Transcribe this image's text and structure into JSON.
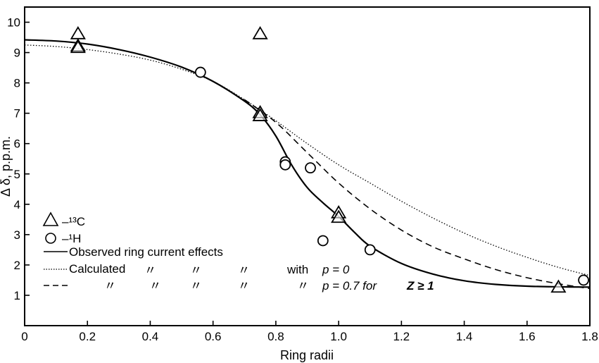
{
  "chart_data": {
    "type": "scatter",
    "xlabel": "Ring radii",
    "ylabel": "Δ δ, p.p.m.",
    "xlim": [
      0,
      1.8
    ],
    "ylim": [
      0,
      10.5
    ],
    "x_ticks": [
      "0",
      "0.2",
      "0.4",
      "0.6",
      "0.8",
      "1.0",
      "1.2",
      "1.4",
      "1.6",
      "1.8"
    ],
    "y_ticks": [
      "1",
      "2",
      "3",
      "4",
      "5",
      "6",
      "7",
      "8",
      "9",
      "10"
    ],
    "grid": false,
    "legend_position": "bottom-left",
    "series": [
      {
        "name": "–13C",
        "kind": "points",
        "marker": "triangle",
        "points": [
          [
            0.17,
            9.6
          ],
          [
            0.17,
            9.2
          ],
          [
            0.17,
            9.15
          ],
          [
            0.75,
            9.6
          ],
          [
            0.75,
            7.0
          ],
          [
            0.75,
            6.9
          ],
          [
            1.0,
            3.7
          ],
          [
            1.0,
            3.55
          ],
          [
            1.7,
            1.25
          ]
        ]
      },
      {
        "name": "–1H",
        "kind": "points",
        "marker": "circle",
        "points": [
          [
            0.56,
            8.35
          ],
          [
            0.83,
            5.4
          ],
          [
            0.83,
            5.3
          ],
          [
            0.91,
            5.2
          ],
          [
            0.95,
            2.8
          ],
          [
            1.1,
            2.5
          ],
          [
            1.78,
            1.5
          ]
        ]
      },
      {
        "name": "Observed ring current effects",
        "kind": "line",
        "style": "solid",
        "points": [
          [
            0,
            9.42
          ],
          [
            0.1,
            9.38
          ],
          [
            0.2,
            9.28
          ],
          [
            0.3,
            9.1
          ],
          [
            0.4,
            8.85
          ],
          [
            0.5,
            8.52
          ],
          [
            0.6,
            8.05
          ],
          [
            0.7,
            7.4
          ],
          [
            0.75,
            6.95
          ],
          [
            0.8,
            6.25
          ],
          [
            0.85,
            5.3
          ],
          [
            0.9,
            4.55
          ],
          [
            0.95,
            4.05
          ],
          [
            1.0,
            3.6
          ],
          [
            1.05,
            3.08
          ],
          [
            1.1,
            2.62
          ],
          [
            1.2,
            2.05
          ],
          [
            1.3,
            1.7
          ],
          [
            1.4,
            1.48
          ],
          [
            1.5,
            1.36
          ],
          [
            1.6,
            1.3
          ],
          [
            1.7,
            1.28
          ],
          [
            1.8,
            1.27
          ]
        ]
      },
      {
        "name": "Calculated with p = 0",
        "kind": "line",
        "style": "dotted",
        "points": [
          [
            0,
            9.25
          ],
          [
            0.1,
            9.2
          ],
          [
            0.2,
            9.1
          ],
          [
            0.3,
            8.95
          ],
          [
            0.4,
            8.75
          ],
          [
            0.5,
            8.45
          ],
          [
            0.6,
            8.05
          ],
          [
            0.7,
            7.45
          ],
          [
            0.8,
            6.75
          ],
          [
            0.9,
            6.0
          ],
          [
            1.0,
            5.3
          ],
          [
            1.1,
            4.7
          ],
          [
            1.2,
            4.1
          ],
          [
            1.3,
            3.55
          ],
          [
            1.4,
            3.05
          ],
          [
            1.5,
            2.62
          ],
          [
            1.6,
            2.25
          ],
          [
            1.7,
            1.92
          ],
          [
            1.8,
            1.65
          ]
        ]
      },
      {
        "name": "Calculated with p = 0.7 for Z ≥ 1",
        "kind": "line",
        "style": "dashed",
        "points": [
          [
            0.7,
            7.45
          ],
          [
            0.8,
            6.7
          ],
          [
            0.9,
            5.7
          ],
          [
            1.0,
            4.7
          ],
          [
            1.1,
            3.85
          ],
          [
            1.2,
            3.15
          ],
          [
            1.3,
            2.6
          ],
          [
            1.4,
            2.2
          ],
          [
            1.5,
            1.85
          ],
          [
            1.6,
            1.58
          ],
          [
            1.7,
            1.38
          ],
          [
            1.8,
            1.22
          ]
        ]
      }
    ]
  },
  "legend": {
    "c13_label": "–¹³C",
    "h1_label": "–¹H",
    "observed_label": "Observed ring current effects",
    "calculated_label": "Calculated",
    "ditto_mark": "〃",
    "with_label": "with",
    "p0_label": "p = 0",
    "p07_label": "p = 0.7  for",
    "z_label": "Z ≥ 1"
  }
}
